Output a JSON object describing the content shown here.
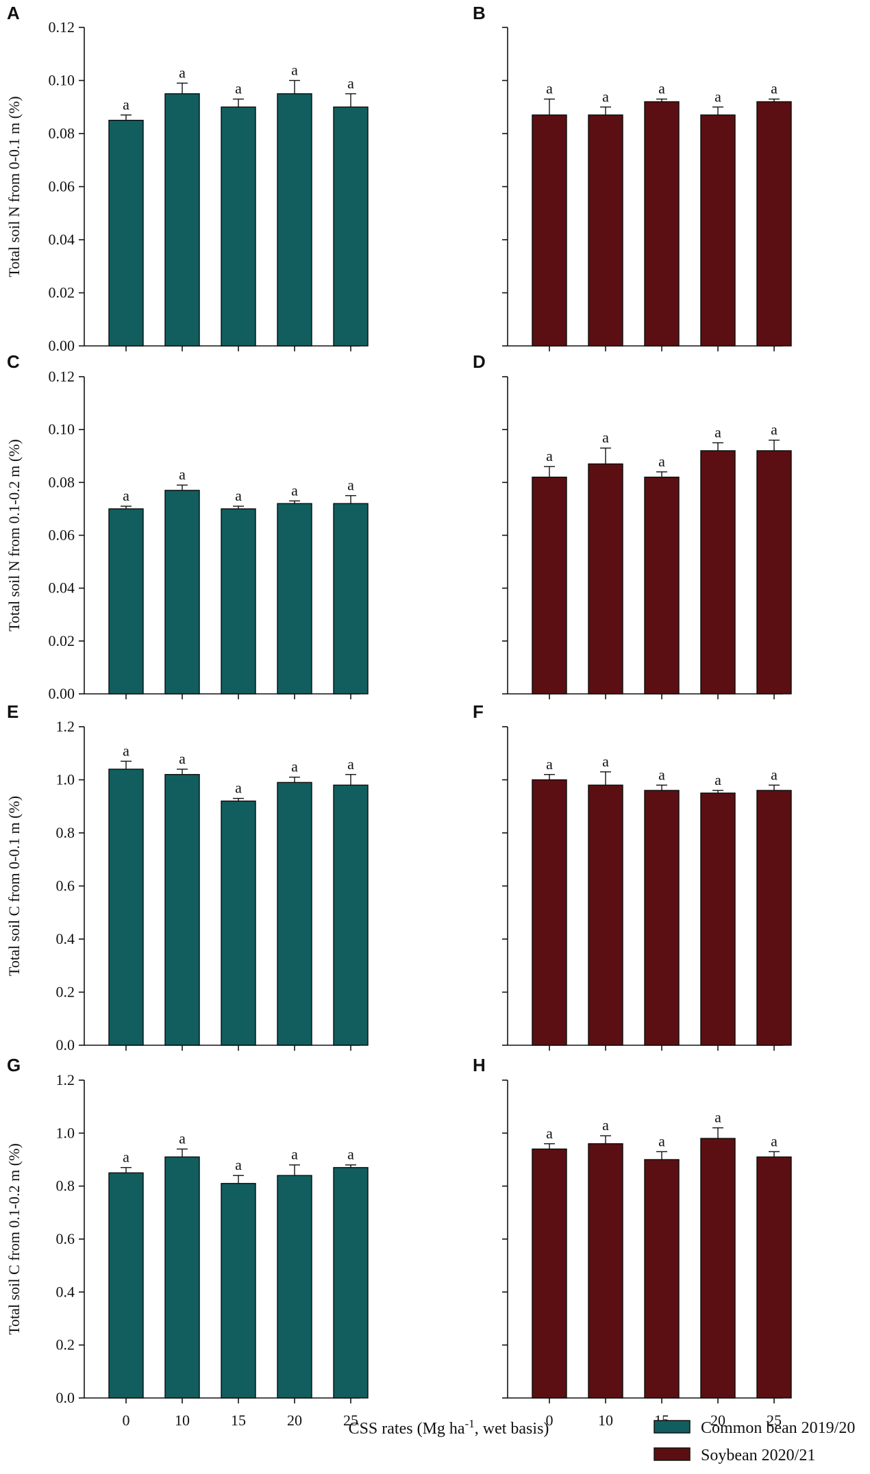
{
  "chart_data": [
    {
      "panel": "A",
      "type": "bar",
      "categories": [
        "0",
        "10",
        "15",
        "20",
        "25"
      ],
      "series_name": "Common bean 2019/20",
      "values": [
        0.085,
        0.095,
        0.09,
        0.095,
        0.09
      ],
      "errors": [
        0.002,
        0.004,
        0.003,
        0.005,
        0.005
      ],
      "significance": [
        "a",
        "a",
        "a",
        "a",
        "a"
      ],
      "ylabel": "Total soil N from 0-0.1 m (%)",
      "ylim": [
        0,
        0.12
      ],
      "yticks": [
        "0.00",
        "0.02",
        "0.04",
        "0.06",
        "0.08",
        "0.10",
        "0.12"
      ],
      "show_y_ticklabels": true,
      "show_x_ticklabels": false
    },
    {
      "panel": "B",
      "type": "bar",
      "categories": [
        "0",
        "10",
        "15",
        "20",
        "25"
      ],
      "series_name": "Soybean 2020/21",
      "values": [
        0.087,
        0.087,
        0.092,
        0.087,
        0.092
      ],
      "errors": [
        0.006,
        0.003,
        0.001,
        0.003,
        0.001
      ],
      "significance": [
        "a",
        "a",
        "a",
        "a",
        "a"
      ],
      "ylabel": "",
      "ylim": [
        0,
        0.12
      ],
      "yticks": [
        "0.00",
        "0.02",
        "0.04",
        "0.06",
        "0.08",
        "0.10",
        "0.12"
      ],
      "show_y_ticklabels": false,
      "show_x_ticklabels": false
    },
    {
      "panel": "C",
      "type": "bar",
      "categories": [
        "0",
        "10",
        "15",
        "20",
        "25"
      ],
      "series_name": "Common bean 2019/20",
      "values": [
        0.07,
        0.077,
        0.07,
        0.072,
        0.072
      ],
      "errors": [
        0.001,
        0.002,
        0.001,
        0.001,
        0.003
      ],
      "significance": [
        "a",
        "a",
        "a",
        "a",
        "a"
      ],
      "ylabel": "Total soil N from 0.1-0.2 m (%)",
      "ylim": [
        0,
        0.12
      ],
      "yticks": [
        "0.00",
        "0.02",
        "0.04",
        "0.06",
        "0.08",
        "0.10",
        "0.12"
      ],
      "show_y_ticklabels": true,
      "show_x_ticklabels": false
    },
    {
      "panel": "D",
      "type": "bar",
      "categories": [
        "0",
        "10",
        "15",
        "20",
        "25"
      ],
      "series_name": "Soybean 2020/21",
      "values": [
        0.082,
        0.087,
        0.082,
        0.092,
        0.092
      ],
      "errors": [
        0.004,
        0.006,
        0.002,
        0.003,
        0.004
      ],
      "significance": [
        "a",
        "a",
        "a",
        "a",
        "a"
      ],
      "ylabel": "",
      "ylim": [
        0,
        0.12
      ],
      "yticks": [
        "0.00",
        "0.02",
        "0.04",
        "0.06",
        "0.08",
        "0.10",
        "0.12"
      ],
      "show_y_ticklabels": false,
      "show_x_ticklabels": false
    },
    {
      "panel": "E",
      "type": "bar",
      "categories": [
        "0",
        "10",
        "15",
        "20",
        "25"
      ],
      "series_name": "Common bean 2019/20",
      "values": [
        1.04,
        1.02,
        0.92,
        0.99,
        0.98
      ],
      "errors": [
        0.03,
        0.02,
        0.01,
        0.02,
        0.04
      ],
      "significance": [
        "a",
        "a",
        "a",
        "a",
        "a"
      ],
      "ylabel": "Total soil C from 0-0.1 m (%)",
      "ylim": [
        0,
        1.2
      ],
      "yticks": [
        "0.0",
        "0.2",
        "0.4",
        "0.6",
        "0.8",
        "1.0",
        "1.2"
      ],
      "show_y_ticklabels": true,
      "show_x_ticklabels": false
    },
    {
      "panel": "F",
      "type": "bar",
      "categories": [
        "0",
        "10",
        "15",
        "20",
        "25"
      ],
      "series_name": "Soybean 2020/21",
      "values": [
        1.0,
        0.98,
        0.96,
        0.95,
        0.96
      ],
      "errors": [
        0.02,
        0.05,
        0.02,
        0.01,
        0.02
      ],
      "significance": [
        "a",
        "a",
        "a",
        "a",
        "a"
      ],
      "ylabel": "",
      "ylim": [
        0,
        1.2
      ],
      "yticks": [
        "0.0",
        "0.2",
        "0.4",
        "0.6",
        "0.8",
        "1.0",
        "1.2"
      ],
      "show_y_ticklabels": false,
      "show_x_ticklabels": false
    },
    {
      "panel": "G",
      "type": "bar",
      "categories": [
        "0",
        "10",
        "15",
        "20",
        "25"
      ],
      "series_name": "Common bean 2019/20",
      "values": [
        0.85,
        0.91,
        0.81,
        0.84,
        0.87
      ],
      "errors": [
        0.02,
        0.03,
        0.03,
        0.04,
        0.01
      ],
      "significance": [
        "a",
        "a",
        "a",
        "a",
        "a"
      ],
      "ylabel": "Total soil C from 0.1-0.2 m (%)",
      "ylim": [
        0,
        1.2
      ],
      "yticks": [
        "0.0",
        "0.2",
        "0.4",
        "0.6",
        "0.8",
        "1.0",
        "1.2"
      ],
      "show_y_ticklabels": true,
      "show_x_ticklabels": true
    },
    {
      "panel": "H",
      "type": "bar",
      "categories": [
        "0",
        "10",
        "15",
        "20",
        "25"
      ],
      "series_name": "Soybean 2020/21",
      "values": [
        0.94,
        0.96,
        0.9,
        0.98,
        0.91
      ],
      "errors": [
        0.02,
        0.03,
        0.03,
        0.04,
        0.02
      ],
      "significance": [
        "a",
        "a",
        "a",
        "a",
        "a"
      ],
      "ylabel": "",
      "ylim": [
        0,
        1.2
      ],
      "yticks": [
        "0.0",
        "0.2",
        "0.4",
        "0.6",
        "0.8",
        "1.0",
        "1.2"
      ],
      "show_y_ticklabels": false,
      "show_x_ticklabels": true
    }
  ],
  "xlabel": {
    "prefix": "CSS rates (Mg ha",
    "superscript": "-1",
    "suffix": ", wet basis)"
  },
  "legend": [
    {
      "label": "Common bean 2019/20",
      "color": "#125e5e"
    },
    {
      "label": "Soybean 2020/21",
      "color": "#5c0f12"
    }
  ],
  "colors": {
    "common_bean": "#125e5e",
    "soybean": "#5c0f12",
    "axis": "#111111"
  }
}
